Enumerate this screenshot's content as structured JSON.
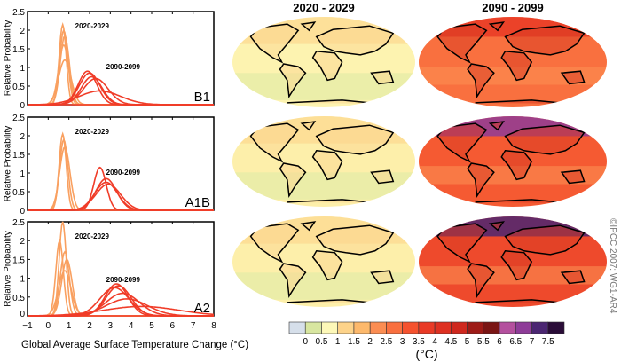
{
  "chart_data": {
    "type": "line",
    "xlabel": "Global Average Surface Temperature Change (°C)",
    "ylabel": "Relative Probability",
    "xlim": [
      -1,
      8
    ],
    "ylim": [
      0,
      2.5
    ],
    "xticks": [
      "−1",
      "0",
      "1",
      "2",
      "3",
      "4",
      "5",
      "6",
      "7",
      "8"
    ],
    "yticks": [
      "0",
      "0.5",
      "1",
      "1.5",
      "2",
      "2.5"
    ],
    "colors": {
      "early": "#f9a060",
      "late": "#f03c28"
    },
    "panels": [
      {
        "scenario": "B1",
        "label_early": "2020-2029",
        "label_late": "2090-2099",
        "early": [
          {
            "mean": 0.7,
            "sd": 0.17,
            "peak": 2.15
          },
          {
            "mean": 0.75,
            "sd": 0.2,
            "peak": 2.0
          },
          {
            "mean": 0.8,
            "sd": 0.22,
            "peak": 1.85
          },
          {
            "mean": 0.75,
            "sd": 0.25,
            "peak": 1.6
          },
          {
            "mean": 0.8,
            "sd": 0.3,
            "peak": 1.2
          }
        ],
        "late": [
          {
            "mean": 1.9,
            "sd": 0.45,
            "peak": 0.9
          },
          {
            "mean": 2.0,
            "sd": 0.5,
            "peak": 0.85
          },
          {
            "mean": 2.1,
            "sd": 0.5,
            "peak": 0.75
          },
          {
            "mean": 2.3,
            "sd": 0.6,
            "peak": 0.7
          },
          {
            "mean": 2.5,
            "sd": 1.0,
            "peak": 0.37
          }
        ]
      },
      {
        "scenario": "A1B",
        "label_early": "2020-2029",
        "label_late": "2090-2099",
        "early": [
          {
            "mean": 0.7,
            "sd": 0.17,
            "peak": 2.05
          },
          {
            "mean": 0.75,
            "sd": 0.2,
            "peak": 1.9
          },
          {
            "mean": 0.8,
            "sd": 0.25,
            "peak": 1.7
          }
        ],
        "late": [
          {
            "mean": 2.5,
            "sd": 0.3,
            "peak": 1.15
          },
          {
            "mean": 2.8,
            "sd": 0.5,
            "peak": 0.85
          },
          {
            "mean": 2.8,
            "sd": 0.55,
            "peak": 0.75
          },
          {
            "mean": 2.9,
            "sd": 0.6,
            "peak": 0.7
          }
        ]
      },
      {
        "scenario": "A2",
        "label_early": "2020-2029",
        "label_late": "2090-2099",
        "early": [
          {
            "mean": 0.7,
            "sd": 0.17,
            "peak": 2.5
          },
          {
            "mean": 0.55,
            "sd": 0.18,
            "peak": 2.0
          },
          {
            "mean": 0.8,
            "sd": 0.22,
            "peak": 1.7
          },
          {
            "mean": 0.9,
            "sd": 0.25,
            "peak": 1.5
          },
          {
            "mean": 0.8,
            "sd": 0.3,
            "peak": 1.2
          }
        ],
        "late": [
          {
            "mean": 3.3,
            "sd": 0.55,
            "peak": 0.85
          },
          {
            "mean": 3.4,
            "sd": 0.6,
            "peak": 0.8
          },
          {
            "mean": 3.2,
            "sd": 0.7,
            "peak": 0.75
          },
          {
            "mean": 3.6,
            "sd": 0.8,
            "peak": 0.6
          },
          {
            "mean": 3.8,
            "sd": 1.0,
            "peak": 0.45
          },
          {
            "mean": 4.5,
            "sd": 1.8,
            "peak": 0.25
          }
        ]
      }
    ]
  },
  "maps": {
    "col_titles": [
      "2020 - 2029",
      "2090 - 2099"
    ],
    "rows": [
      {
        "scenario": "B1",
        "early_base": "#fdf3b0",
        "late_base": "#f9703f",
        "late_pole": "#e93a26"
      },
      {
        "scenario": "A1B",
        "early_base": "#fdefaa",
        "late_base": "#f55a32",
        "late_pole": "#8e3c98"
      },
      {
        "scenario": "A2",
        "early_base": "#fdefaa",
        "late_base": "#ee4a2c",
        "late_pole": "#4b2672"
      }
    ]
  },
  "colorbar": {
    "unit": "(°C)",
    "labels": [
      "0",
      "0.5",
      "1",
      "1.5",
      "2",
      "2.5",
      "3",
      "3.5",
      "4",
      "4.5",
      "5",
      "5.5",
      "6",
      "6.5",
      "7",
      "7.5"
    ],
    "colors": [
      "#d6dfea",
      "#d8e6a0",
      "#fdf8b8",
      "#fdd38a",
      "#fdb96c",
      "#fb8d52",
      "#f9703f",
      "#f5522e",
      "#e93a26",
      "#de3021",
      "#cf281e",
      "#9e1b17",
      "#7a1514",
      "#b4509e",
      "#8e3c98",
      "#4b2672",
      "#2a0c38"
    ]
  },
  "copyright": "©IPCC 2007: WG1-AR4"
}
